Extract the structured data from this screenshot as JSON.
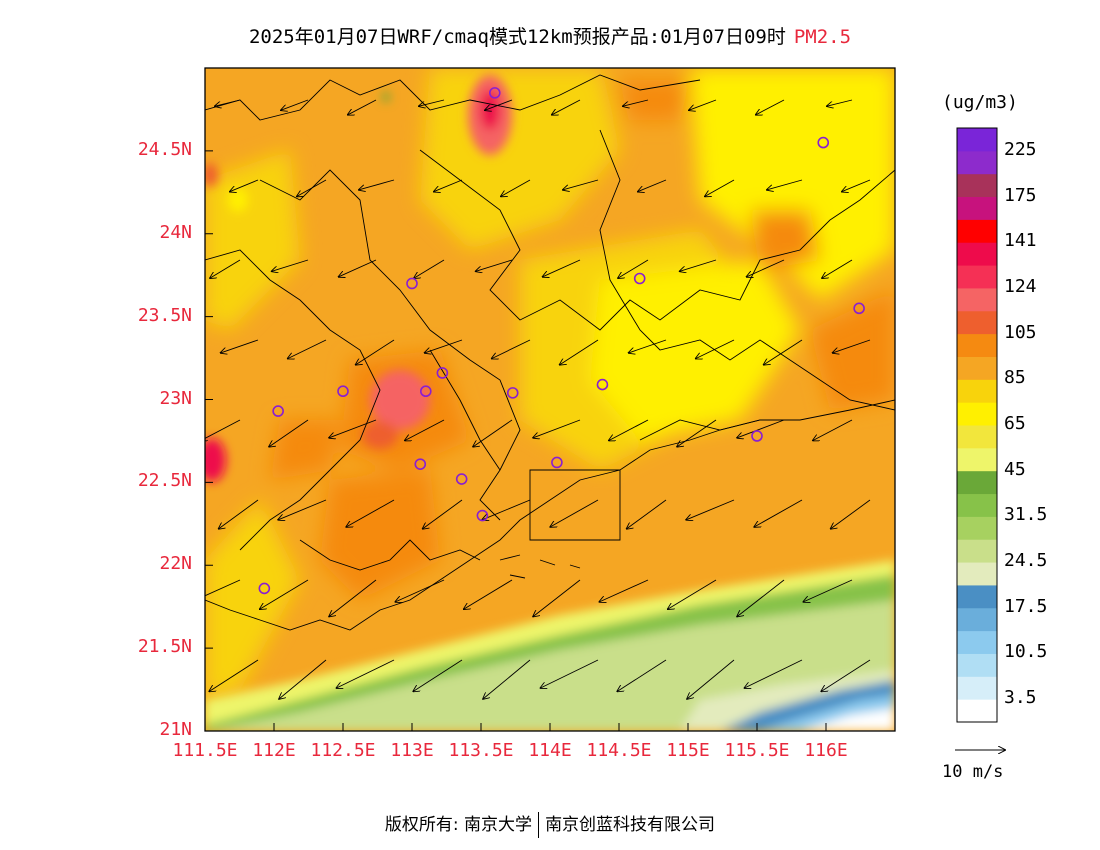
{
  "title": {
    "main": "2025年01月07日WRF/cmaq模式12km预报产品:01月07日09时",
    "variable": "PM2.5"
  },
  "map": {
    "lat_labels": [
      "24.5N",
      "24N",
      "23.5N",
      "23N",
      "22.5N",
      "22N",
      "21.5N",
      "21N"
    ],
    "lon_labels": [
      "111.5E",
      "112E",
      "112.5E",
      "113E",
      "113.5E",
      "114E",
      "114.5E",
      "115E",
      "115.5E",
      "116E"
    ],
    "lon_range": [
      111.5,
      116.5
    ],
    "lat_range": [
      21.0,
      25.0
    ],
    "stations": [
      {
        "lon": 113.6,
        "lat": 24.85
      },
      {
        "lon": 115.98,
        "lat": 24.55
      },
      {
        "lon": 113.0,
        "lat": 23.7
      },
      {
        "lon": 114.65,
        "lat": 23.73
      },
      {
        "lon": 116.24,
        "lat": 23.55
      },
      {
        "lon": 112.5,
        "lat": 23.05
      },
      {
        "lon": 112.03,
        "lat": 22.93
      },
      {
        "lon": 113.1,
        "lat": 23.05
      },
      {
        "lon": 113.22,
        "lat": 23.16
      },
      {
        "lon": 113.73,
        "lat": 23.04
      },
      {
        "lon": 114.38,
        "lat": 23.09
      },
      {
        "lon": 113.06,
        "lat": 22.61
      },
      {
        "lon": 113.36,
        "lat": 22.52
      },
      {
        "lon": 114.05,
        "lat": 22.62
      },
      {
        "lon": 115.5,
        "lat": 22.78
      },
      {
        "lon": 113.51,
        "lat": 22.3
      },
      {
        "lon": 111.93,
        "lat": 21.86
      }
    ]
  },
  "colorbar": {
    "unit": "(ug/m3)",
    "colors": [
      "#ffffff",
      "#d6eef9",
      "#b0def4",
      "#8ccaee",
      "#6aaedb",
      "#4a8fc4",
      "#e3ebbd",
      "#c9df8a",
      "#a7d160",
      "#87c249",
      "#6aa838",
      "#eef56a",
      "#f2e63c",
      "#fff000",
      "#f8d30c",
      "#f5a623",
      "#f58a11",
      "#ee5f2e",
      "#f56464",
      "#f53055",
      "#ee0b4b",
      "#ff0000",
      "#c7127d",
      "#a8325a",
      "#8d2bcc",
      "#7a25d8"
    ],
    "labels": [
      "3.5",
      "10.5",
      "17.5",
      "24.5",
      "31.5",
      "45",
      "65",
      "85",
      "105",
      "124",
      "141",
      "175",
      "225"
    ]
  },
  "vector_legend": {
    "label": "10 m/s"
  },
  "footer": {
    "copyright": "版权所有: 南京大学",
    "company": "南京创蓝科技有限公司"
  }
}
